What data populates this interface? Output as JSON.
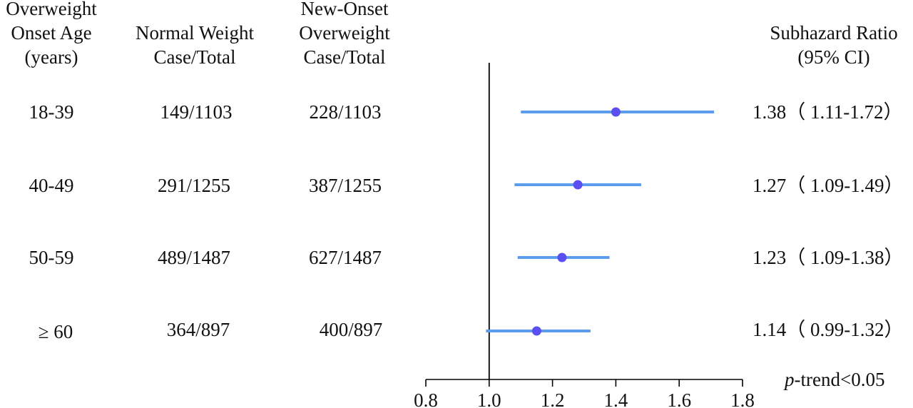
{
  "headers": {
    "age": [
      "Overweight",
      "Onset Age",
      "(years)"
    ],
    "normal": [
      "Normal Weight",
      "Case/Total"
    ],
    "onset": [
      "New-Onset",
      "Overweight",
      "Case/Total"
    ],
    "shr": [
      "Subhazard Ratio",
      "(95%  CI)"
    ]
  },
  "rows": [
    {
      "age": "18-39",
      "normal": "149/1103",
      "onset": "228/1103",
      "shr_text": "1.38（ 1.11-1.72）"
    },
    {
      "age": "40-49",
      "normal": "291/1255",
      "onset": "387/1255",
      "shr_text": "1.27（ 1.09-1.49）"
    },
    {
      "age": "50-59",
      "normal": "489/1487",
      "onset": "627/1487",
      "shr_text": "1.23（ 1.09-1.38）"
    },
    {
      "age": "≥ 60",
      "normal": "364/897",
      "onset": "400/897",
      "shr_text": "1.14（ 0.99-1.32）"
    }
  ],
  "footer": {
    "p_italic": "p",
    "p_rest": "-trend<0.05"
  },
  "colors": {
    "ci_line": "#5b9cec",
    "point": "#5b4ff0",
    "axis": "#000000"
  },
  "chart_data": {
    "type": "forest",
    "categories": [
      "18-39",
      "40-49",
      "50-59",
      "≥ 60"
    ],
    "series": [
      {
        "estimate": [
          1.4,
          1.28,
          1.23,
          1.15
        ],
        "lower": [
          1.1,
          1.08,
          1.09,
          0.99
        ],
        "upper": [
          1.71,
          1.48,
          1.38,
          1.32
        ]
      }
    ],
    "xlim": [
      0.8,
      1.8
    ],
    "xticks": [
      "0.8",
      "1.0",
      "1.2",
      "1.4",
      "1.6",
      "1.8"
    ],
    "reference_line": 1.0,
    "grid": false
  }
}
